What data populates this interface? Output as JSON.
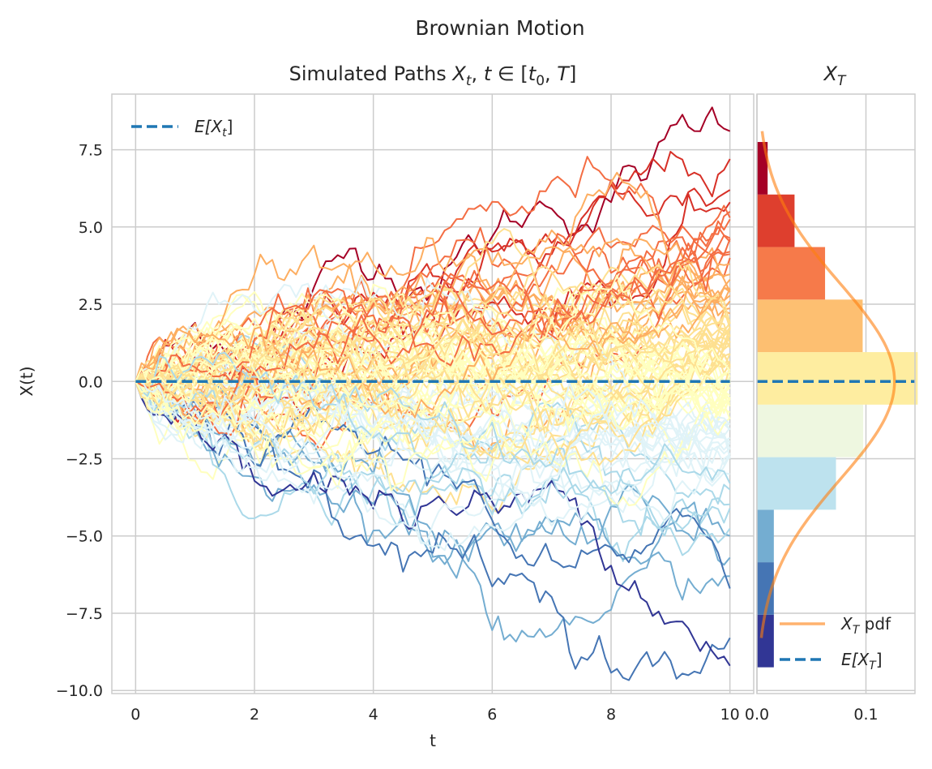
{
  "chart_data": [
    {
      "type": "line",
      "suptitle": "Brownian Motion",
      "title": "Simulated Paths X_t, t ∈ [t_0, T]",
      "title_prefix": "Simulated Paths ",
      "xlabel": "t",
      "ylabel": "X(t)",
      "xlim": [
        -0.4,
        10.4
      ],
      "ylim": [
        -10.1,
        9.3
      ],
      "xticks": [
        0,
        2,
        4,
        6,
        8,
        10
      ],
      "xtick_labels": [
        "0",
        "2",
        "4",
        "6",
        "8",
        "10"
      ],
      "yticks": [
        7.5,
        5.0,
        2.5,
        0.0,
        -2.5,
        -5.0,
        -7.5,
        -10.0
      ],
      "ytick_labels": [
        "7.5",
        "5.0",
        "2.5",
        "0.0",
        "−2.5",
        "−5.0",
        "−7.5",
        "−10.0"
      ],
      "grid": true,
      "legend_position": "top-left",
      "colormap": "RdYlBu_r (paths colored by final value)",
      "num_paths_approx": 100,
      "t0": 0,
      "T": 10,
      "x0": 0,
      "colors": [
        "#313695",
        "#4575b4",
        "#74add1",
        "#abd9e9",
        "#e0f3f8",
        "#ffffbf",
        "#fee090",
        "#fdae61",
        "#f46d43",
        "#d73027",
        "#a50026"
      ],
      "series": [
        {
          "name": "E[X_t]",
          "label_text": "E[X",
          "label_sub": "t",
          "x": [
            0,
            10
          ],
          "values": [
            0,
            0
          ],
          "style": "dashed",
          "color": "#1f77b4"
        }
      ],
      "path_endpoints_sample": [
        8.1,
        7.2,
        6.2,
        5.8,
        5.5,
        5.3,
        4.2,
        4.0,
        3.8,
        3.3,
        2.9,
        2.6,
        2.2,
        1.9,
        1.5,
        1.2,
        0.9,
        0.5,
        0.2,
        -0.2,
        -0.6,
        -1.0,
        -1.5,
        -2.0,
        -2.5,
        -3.0,
        -3.5,
        -4.1,
        -5.0,
        -5.7,
        -6.3,
        -6.7,
        -8.3,
        -9.2
      ]
    },
    {
      "type": "bar",
      "orientation": "horizontal",
      "title": "X_T",
      "title_base": "X",
      "title_sub": "T",
      "xlim": [
        0,
        0.145
      ],
      "xticks": [
        0.0,
        0.1
      ],
      "xtick_labels": [
        "0.0",
        "0.1"
      ],
      "ylim": [
        -10.1,
        9.3
      ],
      "grid": true,
      "legend_position": "bottom-right",
      "bins": [
        {
          "lo": -9.25,
          "hi": -7.55,
          "density": 0.0155,
          "color": "#313695"
        },
        {
          "lo": -7.55,
          "hi": -5.85,
          "density": 0.0155,
          "color": "#4575b4"
        },
        {
          "lo": -5.85,
          "hi": -4.15,
          "density": 0.0155,
          "color": "#74add1"
        },
        {
          "lo": -4.15,
          "hi": -2.45,
          "density": 0.0725,
          "color": "#bde2ee"
        },
        {
          "lo": -2.45,
          "hi": -0.75,
          "density": 0.0975,
          "color": "#eef7e0"
        },
        {
          "lo": -0.75,
          "hi": 0.95,
          "density": 0.1475,
          "color": "#feeda0"
        },
        {
          "lo": 0.95,
          "hi": 2.65,
          "density": 0.097,
          "color": "#fdbf71"
        },
        {
          "lo": 2.65,
          "hi": 4.35,
          "density": 0.0625,
          "color": "#f67a4a"
        },
        {
          "lo": 4.35,
          "hi": 6.05,
          "density": 0.0345,
          "color": "#de3f2e"
        },
        {
          "lo": 6.05,
          "hi": 7.75,
          "density": 0.0098,
          "color": "#a50026"
        }
      ],
      "pdf": {
        "mean": 0.0,
        "std": 3.16,
        "y_range": [
          -8.3,
          8.1
        ],
        "color": "#ff7f0e"
      },
      "series": [
        {
          "name": "X_T pdf",
          "label_base": "X",
          "label_sub": "T",
          "label_rest": " pdf",
          "color": "#ff7f0e"
        },
        {
          "name": "E[X_T]",
          "label_text": "E[X",
          "label_sub": "T",
          "value": 0,
          "style": "dashed",
          "color": "#1f77b4"
        }
      ]
    }
  ]
}
